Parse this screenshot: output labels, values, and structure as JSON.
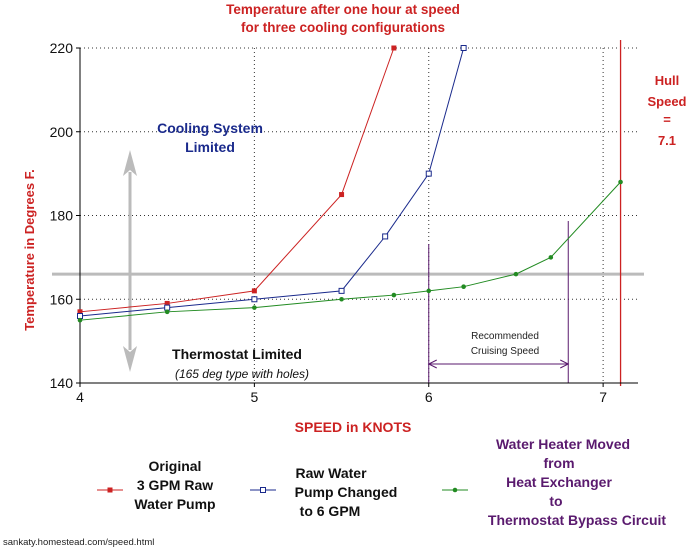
{
  "chart_data": {
    "type": "line",
    "title": "Temperature after one hour at speed",
    "subtitle": "for three cooling configurations",
    "xlabel": "SPEED in KNOTS",
    "ylabel": "Temperature in Degrees F.",
    "xlim": [
      4,
      7.2
    ],
    "ylim": [
      140,
      220
    ],
    "xticks": [
      "4",
      "5",
      "6",
      "7"
    ],
    "yticks": [
      "140",
      "160",
      "180",
      "200",
      "220"
    ],
    "grid": true,
    "series": [
      {
        "name_lines": [
          "Original",
          "3 GPM Raw",
          "Water Pump"
        ],
        "color": "#cc2222",
        "marker": "filled-square",
        "x": [
          4,
          4.5,
          5,
          5.5,
          5.8
        ],
        "y": [
          157,
          159,
          162,
          185,
          220
        ]
      },
      {
        "name_lines": [
          "Raw Water",
          "Pump Changed",
          "to 6 GPM"
        ],
        "color": "#1a2a8c",
        "marker": "open-square",
        "x": [
          4,
          4.5,
          5,
          5.5,
          5.75,
          6,
          6.2
        ],
        "y": [
          156,
          158,
          160,
          162,
          175,
          190,
          220
        ]
      },
      {
        "name_lines": [
          "Water Heater Moved",
          "from",
          "Heat Exchanger",
          "to",
          "Thermostat Bypass Circuit"
        ],
        "color": "#228b22",
        "marker": "dot",
        "x": [
          4,
          4.5,
          5,
          5.5,
          5.8,
          6,
          6.2,
          6.5,
          6.7,
          7.1
        ],
        "y": [
          155,
          157,
          158,
          160,
          161,
          162,
          163,
          166,
          170,
          188
        ]
      }
    ],
    "reference_line": {
      "y": 166,
      "color": "#bbbbbb"
    },
    "hull_speed": {
      "x": 7.1,
      "lines": [
        "Hull",
        "Speed",
        "=",
        "7.1"
      ],
      "color": "#cc2222"
    },
    "cruising": {
      "x_from": 6,
      "x_to": 6.8,
      "lines": [
        "Recommended",
        "Cruising Speed"
      ],
      "color": "#5a1a6e"
    },
    "annotations": {
      "cooling_limited": [
        "Cooling System",
        "Limited"
      ],
      "thermostat_limited": "Thermostat Limited",
      "thermostat_note": "(165 deg type with holes)"
    },
    "arrow_color": "#bbbbbb"
  },
  "footer": {
    "url": "sankaty.homestead.com/speed.html"
  }
}
